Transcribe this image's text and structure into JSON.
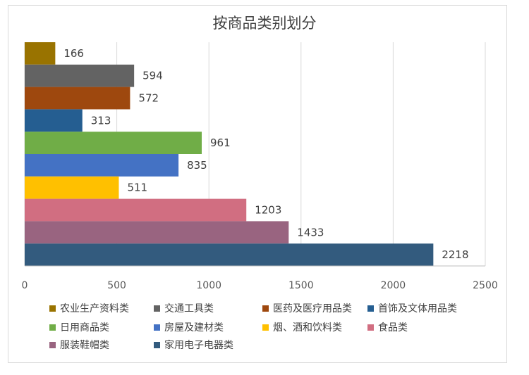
{
  "chart_data": {
    "type": "bar",
    "orientation": "horizontal",
    "title": "按商品类别划分",
    "xlabel": "",
    "ylabel": "",
    "xlim": [
      0,
      2500
    ],
    "x_ticks": [
      "0",
      "500",
      "1000",
      "1500",
      "2000",
      "2500"
    ],
    "grid": true,
    "legend_position": "bottom",
    "series": [
      {
        "name": "农业生产资料类",
        "value": 166,
        "color": "#997300"
      },
      {
        "name": "交通工具类",
        "value": 594,
        "color": "#636363"
      },
      {
        "name": "医药及医疗用品类",
        "value": 572,
        "color": "#9e480e"
      },
      {
        "name": "首饰及文体用品类",
        "value": 313,
        "color": "#255e91"
      },
      {
        "name": "日用商品类",
        "value": 961,
        "color": "#70ad47"
      },
      {
        "name": "房屋及建材类",
        "value": 835,
        "color": "#4472c4"
      },
      {
        "name": "烟、酒和饮料类",
        "value": 511,
        "color": "#ffc000"
      },
      {
        "name": "食品类",
        "value": 1203,
        "color": "#d16e81"
      },
      {
        "name": "服装鞋帽类",
        "value": 1433,
        "color": "#996480"
      },
      {
        "name": "家用电子电器类",
        "value": 2218,
        "color": "#335b7e"
      }
    ],
    "data_labels": [
      "166",
      "594",
      "572",
      "313",
      "961",
      "835",
      "511",
      "1203",
      "1433",
      "2218"
    ]
  }
}
